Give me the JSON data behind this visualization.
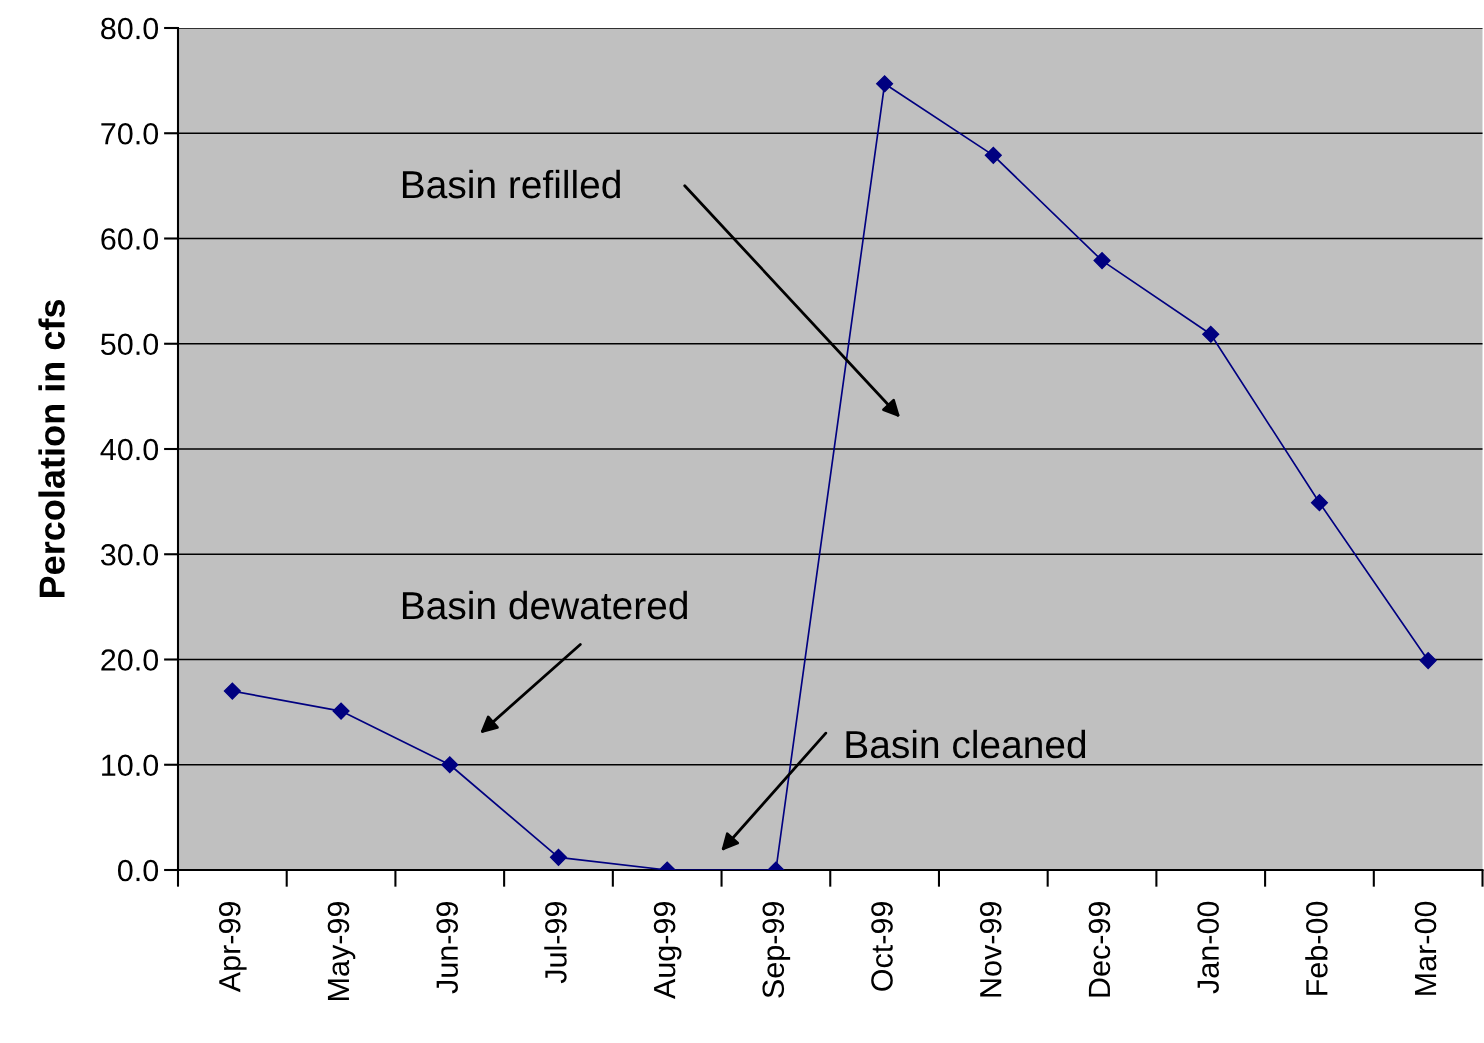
{
  "chart_data": {
    "type": "line",
    "ylabel": "Percolation in cfs",
    "categories": [
      "Apr-99",
      "May-99",
      "Jun-99",
      "Jul-99",
      "Aug-99",
      "Sep-99",
      "Oct-99",
      "Nov-99",
      "Dec-99",
      "Jan-00",
      "Feb-00",
      "Mar-00"
    ],
    "series": [
      {
        "color": "#000080",
        "values": [
          17.0,
          15.1,
          10.0,
          1.2,
          0.0,
          0.0,
          74.7,
          67.9,
          57.9,
          50.9,
          34.9,
          19.9
        ]
      }
    ],
    "ylim": [
      0,
      80
    ],
    "yticks": [
      {
        "value": 0,
        "label": "0.0"
      },
      {
        "value": 10,
        "label": "10.0"
      },
      {
        "value": 20,
        "label": "20.0"
      },
      {
        "value": 30,
        "label": "30.0"
      },
      {
        "value": 40,
        "label": "40.0"
      },
      {
        "value": 50,
        "label": "50.0"
      },
      {
        "value": 60,
        "label": "60.0"
      },
      {
        "value": 70,
        "label": "70.0"
      },
      {
        "value": 80,
        "label": "80.0"
      }
    ],
    "grid": "y",
    "marker": "diamond",
    "line_style": "solid",
    "annotations": [
      "Basin refilled",
      "Basin dewatered",
      "Basin cleaned"
    ]
  }
}
